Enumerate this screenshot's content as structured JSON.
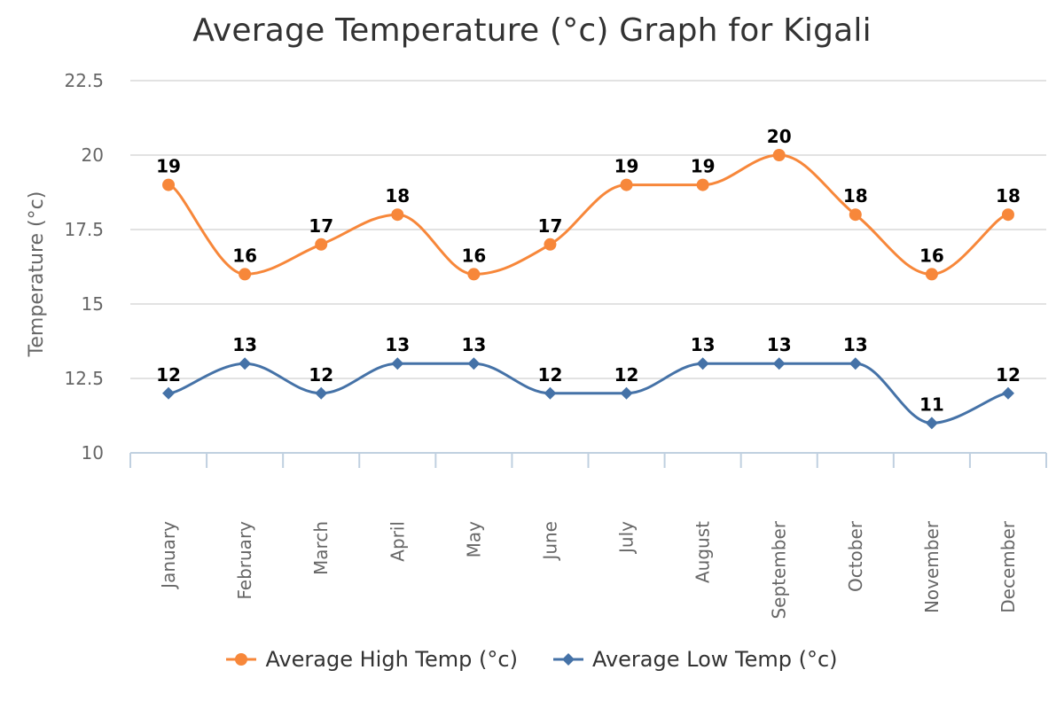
{
  "chart_data": {
    "type": "line",
    "title": "Average Temperature (°c) Graph for Kigali",
    "xlabel": "",
    "ylabel": "Temperature (°c)",
    "ylim": [
      10,
      22.5
    ],
    "yticks": [
      "10",
      "12.5",
      "15",
      "17.5",
      "20",
      "22.5"
    ],
    "ytick_values": [
      10,
      12.5,
      15,
      17.5,
      20,
      22.5
    ],
    "categories": [
      "January",
      "February",
      "March",
      "April",
      "May",
      "June",
      "July",
      "August",
      "September",
      "October",
      "November",
      "December"
    ],
    "grid": "horizontal",
    "legend_position": "bottom",
    "series": [
      {
        "name": "Average High Temp (°c)",
        "values": [
          19,
          16,
          17,
          18,
          16,
          17,
          19,
          19,
          20,
          18,
          16,
          18
        ],
        "color": "#f7873a",
        "marker": "circle"
      },
      {
        "name": "Average Low Temp (°c)",
        "values": [
          12,
          13,
          12,
          13,
          13,
          12,
          12,
          13,
          13,
          13,
          11,
          12
        ],
        "color": "#4572a7",
        "marker": "diamond"
      }
    ]
  }
}
